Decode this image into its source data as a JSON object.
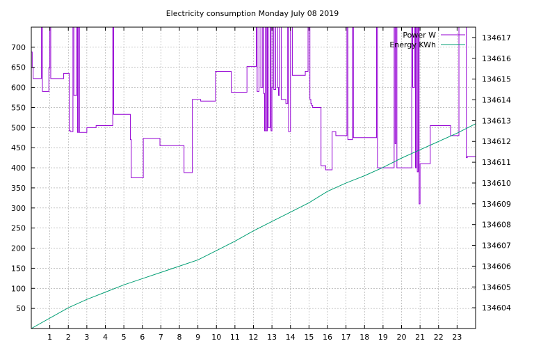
{
  "chart_data": {
    "type": "line",
    "title": "Electricity consumption Monday July 08 2019",
    "xlabel": "",
    "ylabel": "",
    "y2label": "",
    "xlim": [
      0,
      24
    ],
    "ylim": [
      0,
      750
    ],
    "y2lim": [
      134603,
      134617.5
    ],
    "x_ticks": [
      1,
      2,
      3,
      4,
      5,
      6,
      7,
      8,
      9,
      10,
      11,
      12,
      13,
      14,
      15,
      16,
      17,
      18,
      19,
      20,
      21,
      22,
      23
    ],
    "y_ticks": [
      50,
      100,
      150,
      200,
      250,
      300,
      350,
      400,
      450,
      500,
      550,
      600,
      650,
      700
    ],
    "y2_ticks": [
      134604,
      134605,
      134606,
      134607,
      134608,
      134609,
      134610,
      134611,
      134612,
      134613,
      134614,
      134615,
      134616,
      134617
    ],
    "grid": true,
    "legend_position": "top-right",
    "series": [
      {
        "name": "Power W",
        "axis": "y",
        "color": "#9400d3",
        "style": "step",
        "x": [
          0,
          0.05,
          0.1,
          0.5,
          0.55,
          0.6,
          0.9,
          0.95,
          1.0,
          1.05,
          1.1,
          1.7,
          1.75,
          1.8,
          2.05,
          2.1,
          2.25,
          2.3,
          2.45,
          2.5,
          2.55,
          2.6,
          2.65,
          2.7,
          3.0,
          3.05,
          3.5,
          3.55,
          4.35,
          4.4,
          4.45,
          4.5,
          5.3,
          5.35,
          5.4,
          6.0,
          6.05,
          6.9,
          6.95,
          8.2,
          8.25,
          8.65,
          8.7,
          9.1,
          9.15,
          9.9,
          9.95,
          10.75,
          10.8,
          11.6,
          11.65,
          12.1,
          12.15,
          12.2,
          12.3,
          12.4,
          12.5,
          12.55,
          12.6,
          12.65,
          12.7,
          12.75,
          12.8,
          12.9,
          12.95,
          13.0,
          13.05,
          13.1,
          13.2,
          13.3,
          13.35,
          13.4,
          13.5,
          13.6,
          13.7,
          13.75,
          13.8,
          13.85,
          13.9,
          14.0,
          14.1,
          14.2,
          14.8,
          14.95,
          15.05,
          15.1,
          15.15,
          15.2,
          15.25,
          15.55,
          15.6,
          15.65,
          15.7,
          15.9,
          15.95,
          16.05,
          16.15,
          16.25,
          16.35,
          16.45,
          17.0,
          17.05,
          17.1,
          17.35,
          17.4,
          18.4,
          18.45,
          18.65,
          18.7,
          19.6,
          19.65,
          19.7,
          19.75,
          20.55,
          20.6,
          20.7,
          20.75,
          20.8,
          20.85,
          20.9,
          20.95,
          21.0,
          21.05,
          21.1,
          21.15,
          21.3,
          21.35,
          21.4,
          21.45,
          21.5,
          21.55,
          22.6,
          22.65,
          23.05,
          23.1,
          23.5,
          23.55,
          23.6,
          24.0
        ],
        "values": [
          688,
          650,
          622,
          622,
          750,
          590,
          590,
          648,
          750,
          622,
          622,
          622,
          635,
          635,
          493,
          490,
          750,
          580,
          750,
          488,
          750,
          488,
          488,
          488,
          500,
          500,
          505,
          505,
          505,
          750,
          533,
          533,
          533,
          470,
          375,
          375,
          473,
          473,
          455,
          455,
          388,
          388,
          570,
          570,
          566,
          566,
          640,
          640,
          588,
          588,
          652,
          652,
          750,
          590,
          750,
          600,
          750,
          585,
          492,
          750,
          492,
          750,
          500,
          750,
          492,
          600,
          750,
          595,
          750,
          600,
          580,
          750,
          570,
          570,
          570,
          560,
          560,
          750,
          490,
          750,
          630,
          630,
          640,
          750,
          570,
          560,
          555,
          550,
          550,
          550,
          550,
          405,
          405,
          395,
          395,
          395,
          395,
          490,
          490,
          480,
          480,
          750,
          470,
          750,
          475,
          475,
          475,
          750,
          400,
          750,
          460,
          750,
          400,
          750,
          600,
          750,
          400,
          750,
          390,
          750,
          310,
          410,
          410,
          410,
          410,
          410,
          410,
          410,
          410,
          410,
          505,
          505,
          480,
          480,
          750,
          425,
          428,
          428,
          428
        ]
      },
      {
        "name": "Energy KWh",
        "axis": "y2",
        "color": "#009e73",
        "style": "line",
        "x": [
          0,
          1,
          2,
          3,
          4,
          5,
          6,
          7,
          8,
          9,
          10,
          11,
          12,
          13,
          14,
          15,
          16,
          17,
          18,
          19,
          20,
          21,
          22,
          23,
          24
        ],
        "values": [
          134603,
          134603.5,
          134604,
          134604.4,
          134604.75,
          134605.1,
          134605.4,
          134605.7,
          134606,
          134606.3,
          134606.75,
          134607.2,
          134607.7,
          134608.15,
          134608.6,
          134609.05,
          134609.6,
          134610.0,
          134610.35,
          134610.75,
          134611.2,
          134611.6,
          134612.0,
          134612.4,
          134612.85
        ]
      }
    ]
  }
}
